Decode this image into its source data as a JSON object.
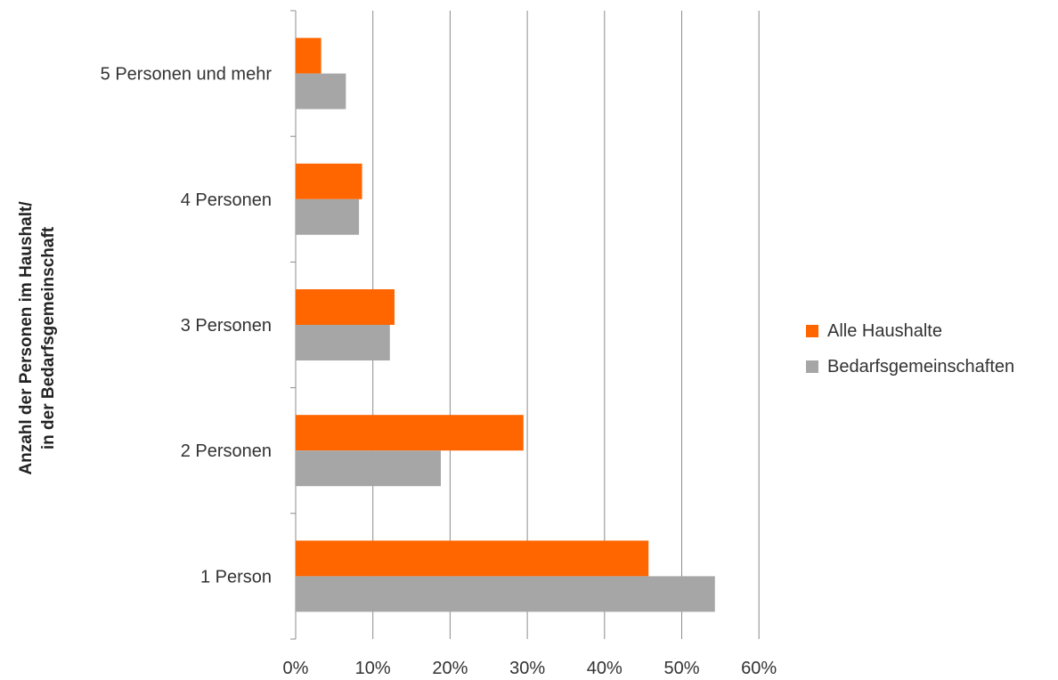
{
  "chart_data": {
    "type": "bar",
    "orientation": "horizontal",
    "categories": [
      "1 Person",
      "2 Personen",
      "3 Personen",
      "4 Personen",
      "5 Personen und mehr"
    ],
    "series": [
      {
        "name": "Alle Haushalte",
        "color": "#ff6600",
        "values": [
          45.7,
          29.5,
          12.8,
          8.6,
          3.3
        ]
      },
      {
        "name": "Bedarfsgemeinschaften",
        "color": "#a6a6a6",
        "values": [
          54.3,
          18.8,
          12.2,
          8.2,
          6.5
        ]
      }
    ],
    "x_ticks": [
      "0%",
      "10%",
      "20%",
      "30%",
      "40%",
      "50%",
      "60%"
    ],
    "xlim": [
      0,
      60
    ],
    "ylabel_lines": [
      "Anzahl der Personen im Haushalt/",
      "in der Bedarfsgemeinschaft"
    ],
    "grid": "vertical",
    "legend_position": "right"
  }
}
